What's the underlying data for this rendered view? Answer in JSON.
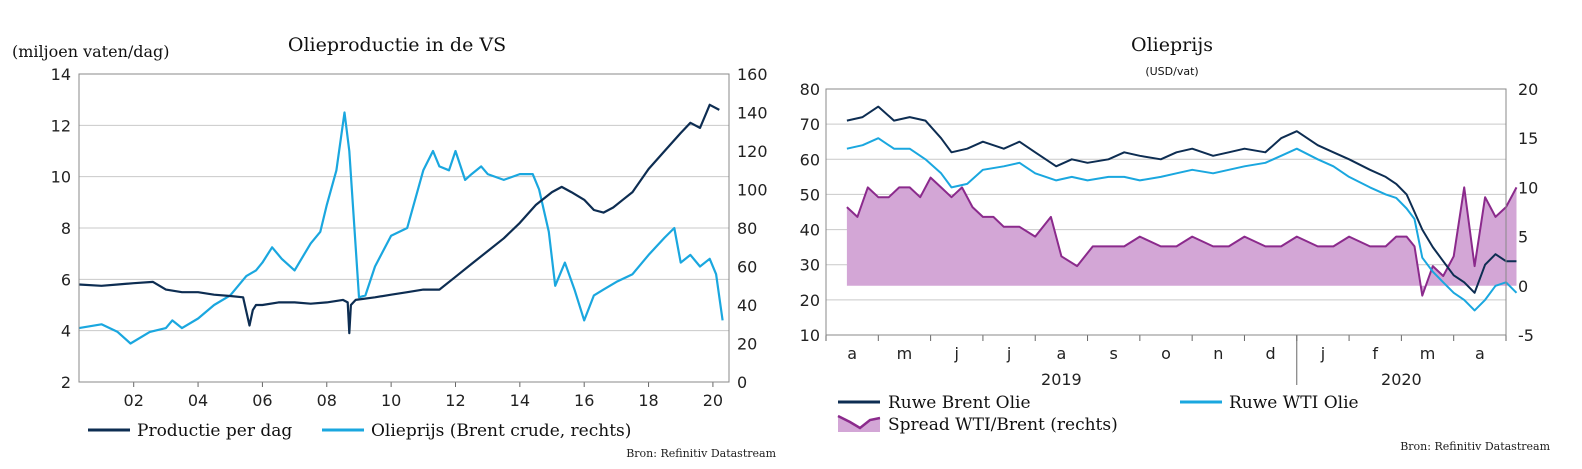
{
  "colors": {
    "dark_navy": "#0d2d52",
    "light_blue": "#1aa7df",
    "purple_line": "#8b2a8c",
    "purple_fill": "#d3a6d6",
    "grid": "#c9c9c9"
  },
  "chart_data": [
    {
      "type": "line",
      "title": "Olieproductie in de VS",
      "ylabel_left": "(miljoen vaten/dag)",
      "ylim_left": [
        2,
        14
      ],
      "yticks_left": [
        2,
        4,
        6,
        8,
        10,
        12,
        14
      ],
      "ylim_right": [
        0,
        160
      ],
      "yticks_right": [
        0,
        20,
        40,
        60,
        80,
        100,
        120,
        140,
        160
      ],
      "xlim": [
        2000.3,
        2020.5
      ],
      "xticks": [
        "02",
        "04",
        "06",
        "08",
        "10",
        "12",
        "14",
        "16",
        "18",
        "20"
      ],
      "xtick_positions": [
        2002,
        2004,
        2006,
        2008,
        2010,
        2012,
        2014,
        2016,
        2018,
        2020
      ],
      "grid": true,
      "legend_position": "bottom",
      "source": "Bron: Refinitiv Datastream",
      "series": [
        {
          "name": "Productie per dag",
          "axis": "left",
          "color": "#0d2d52",
          "x": [
            2000.3,
            2001.0,
            2001.5,
            2002.0,
            2002.6,
            2003.0,
            2003.5,
            2004.0,
            2004.5,
            2005.0,
            2005.4,
            2005.6,
            2005.7,
            2005.8,
            2006.0,
            2006.5,
            2007.0,
            2007.5,
            2008.0,
            2008.5,
            2008.65,
            2008.7,
            2008.75,
            2008.9,
            2009.5,
            2010.0,
            2010.5,
            2011.0,
            2011.5,
            2012.0,
            2012.5,
            2013.0,
            2013.5,
            2014.0,
            2014.5,
            2015.0,
            2015.3,
            2015.6,
            2016.0,
            2016.3,
            2016.6,
            2016.9,
            2017.2,
            2017.5,
            2018.0,
            2018.5,
            2019.0,
            2019.3,
            2019.6,
            2019.8,
            2019.9,
            2020.2
          ],
          "y": [
            5.8,
            5.75,
            5.8,
            5.85,
            5.9,
            5.6,
            5.5,
            5.5,
            5.4,
            5.35,
            5.3,
            4.2,
            4.8,
            5.0,
            5.0,
            5.1,
            5.1,
            5.05,
            5.1,
            5.2,
            5.1,
            3.9,
            5.0,
            5.2,
            5.3,
            5.4,
            5.5,
            5.6,
            5.6,
            6.1,
            6.6,
            7.1,
            7.6,
            8.2,
            8.9,
            9.4,
            9.6,
            9.4,
            9.1,
            8.7,
            8.6,
            8.8,
            9.1,
            9.4,
            10.3,
            11.0,
            11.7,
            12.1,
            11.9,
            12.5,
            12.8,
            12.6
          ]
        },
        {
          "name": "Olieprijs (Brent crude, rechts)",
          "axis": "right",
          "color": "#1aa7df",
          "x": [
            2000.3,
            2001.0,
            2001.5,
            2001.9,
            2002.5,
            2003.0,
            2003.2,
            2003.5,
            2004.0,
            2004.5,
            2005.0,
            2005.5,
            2005.8,
            2006.0,
            2006.3,
            2006.6,
            2007.0,
            2007.5,
            2007.8,
            2008.0,
            2008.3,
            2008.55,
            2008.7,
            2008.9,
            2009.0,
            2009.2,
            2009.5,
            2010.0,
            2010.5,
            2011.0,
            2011.3,
            2011.5,
            2011.8,
            2012.0,
            2012.3,
            2012.5,
            2012.8,
            2013.0,
            2013.5,
            2014.0,
            2014.4,
            2014.6,
            2014.9,
            2015.1,
            2015.4,
            2015.7,
            2016.0,
            2016.3,
            2016.6,
            2017.0,
            2017.5,
            2018.0,
            2018.5,
            2018.8,
            2019.0,
            2019.3,
            2019.6,
            2019.9,
            2020.1,
            2020.3
          ],
          "y": [
            28,
            30,
            26,
            20,
            26,
            28,
            32,
            28,
            33,
            40,
            45,
            55,
            58,
            62,
            70,
            64,
            58,
            72,
            78,
            92,
            110,
            140,
            120,
            70,
            44,
            45,
            60,
            76,
            80,
            110,
            120,
            112,
            110,
            120,
            105,
            108,
            112,
            108,
            105,
            108,
            108,
            100,
            78,
            50,
            62,
            48,
            32,
            45,
            48,
            52,
            56,
            66,
            75,
            80,
            62,
            66,
            60,
            64,
            56,
            32
          ]
        }
      ]
    },
    {
      "type": "line",
      "title": "Olieprijs",
      "subtitle": "(USD/vat)",
      "ylim_left": [
        10,
        80
      ],
      "yticks_left": [
        10,
        20,
        30,
        40,
        50,
        60,
        70,
        80
      ],
      "ylim_right": [
        -5,
        20
      ],
      "yticks_right": [
        -5,
        0,
        5,
        10,
        15,
        20
      ],
      "month_labels": [
        "a",
        "m",
        "j",
        "j",
        "a",
        "s",
        "o",
        "n",
        "d",
        "j",
        "f",
        "m",
        "a"
      ],
      "year_labels": [
        "2019",
        "2020"
      ],
      "grid": true,
      "legend_position": "bottom",
      "source": "Bron: Refinitiv Datastream",
      "series": [
        {
          "name": "Ruwe Brent Olie",
          "axis": "left",
          "color": "#0d2d52",
          "x": [
            0.0,
            0.3,
            0.6,
            0.9,
            1.2,
            1.5,
            1.8,
            2.0,
            2.3,
            2.6,
            3.0,
            3.3,
            3.6,
            4.0,
            4.3,
            4.6,
            5.0,
            5.3,
            5.6,
            6.0,
            6.3,
            6.6,
            7.0,
            7.3,
            7.6,
            8.0,
            8.3,
            8.6,
            9.0,
            9.3,
            9.6,
            10.0,
            10.3,
            10.5,
            10.7,
            10.85,
            11.0,
            11.2,
            11.4,
            11.6,
            11.8,
            12.0,
            12.2,
            12.4,
            12.6,
            12.8
          ],
          "y": [
            71,
            72,
            75,
            71,
            72,
            71,
            66,
            62,
            63,
            65,
            63,
            65,
            62,
            58,
            60,
            59,
            60,
            62,
            61,
            60,
            62,
            63,
            61,
            62,
            63,
            62,
            66,
            68,
            64,
            62,
            60,
            57,
            55,
            53,
            50,
            45,
            40,
            35,
            31,
            27,
            25,
            22,
            30,
            33,
            31,
            31
          ]
        },
        {
          "name": "Ruwe WTI Olie",
          "axis": "left",
          "color": "#1aa7df",
          "x": [
            0.0,
            0.3,
            0.6,
            0.9,
            1.2,
            1.5,
            1.8,
            2.0,
            2.3,
            2.6,
            3.0,
            3.3,
            3.6,
            4.0,
            4.3,
            4.6,
            5.0,
            5.3,
            5.6,
            6.0,
            6.3,
            6.6,
            7.0,
            7.3,
            7.6,
            8.0,
            8.3,
            8.6,
            9.0,
            9.3,
            9.6,
            10.0,
            10.3,
            10.5,
            10.7,
            10.85,
            11.0,
            11.2,
            11.4,
            11.6,
            11.8,
            12.0,
            12.2,
            12.4,
            12.6,
            12.8
          ],
          "y": [
            63,
            64,
            66,
            63,
            63,
            60,
            56,
            52,
            53,
            57,
            58,
            59,
            56,
            54,
            55,
            54,
            55,
            55,
            54,
            55,
            56,
            57,
            56,
            57,
            58,
            59,
            61,
            63,
            60,
            58,
            55,
            52,
            50,
            49,
            46,
            43,
            32,
            28,
            25,
            22,
            20,
            17,
            20,
            24,
            25,
            22
          ]
        },
        {
          "name": "Spread WTI/Brent (rechts)",
          "axis": "right",
          "color": "#8b2a8c",
          "fill": "#d3a6d6",
          "x": [
            0.0,
            0.2,
            0.4,
            0.6,
            0.8,
            1.0,
            1.2,
            1.4,
            1.6,
            1.8,
            2.0,
            2.2,
            2.4,
            2.6,
            2.8,
            3.0,
            3.3,
            3.6,
            3.9,
            4.1,
            4.4,
            4.7,
            5.0,
            5.3,
            5.6,
            6.0,
            6.3,
            6.6,
            7.0,
            7.3,
            7.6,
            8.0,
            8.3,
            8.6,
            9.0,
            9.3,
            9.6,
            10.0,
            10.3,
            10.5,
            10.7,
            10.85,
            11.0,
            11.2,
            11.4,
            11.6,
            11.8,
            12.0,
            12.2,
            12.4,
            12.6,
            12.8
          ],
          "y": [
            8,
            7,
            10,
            9,
            9,
            10,
            10,
            9,
            11,
            10,
            9,
            10,
            8,
            7,
            7,
            6,
            6,
            5,
            7,
            3,
            2,
            4,
            4,
            4,
            5,
            4,
            4,
            5,
            4,
            4,
            5,
            4,
            4,
            5,
            4,
            4,
            5,
            4,
            4,
            5,
            5,
            4,
            -1,
            2,
            1,
            3,
            10,
            2,
            9,
            7,
            8,
            10
          ]
        }
      ]
    }
  ]
}
